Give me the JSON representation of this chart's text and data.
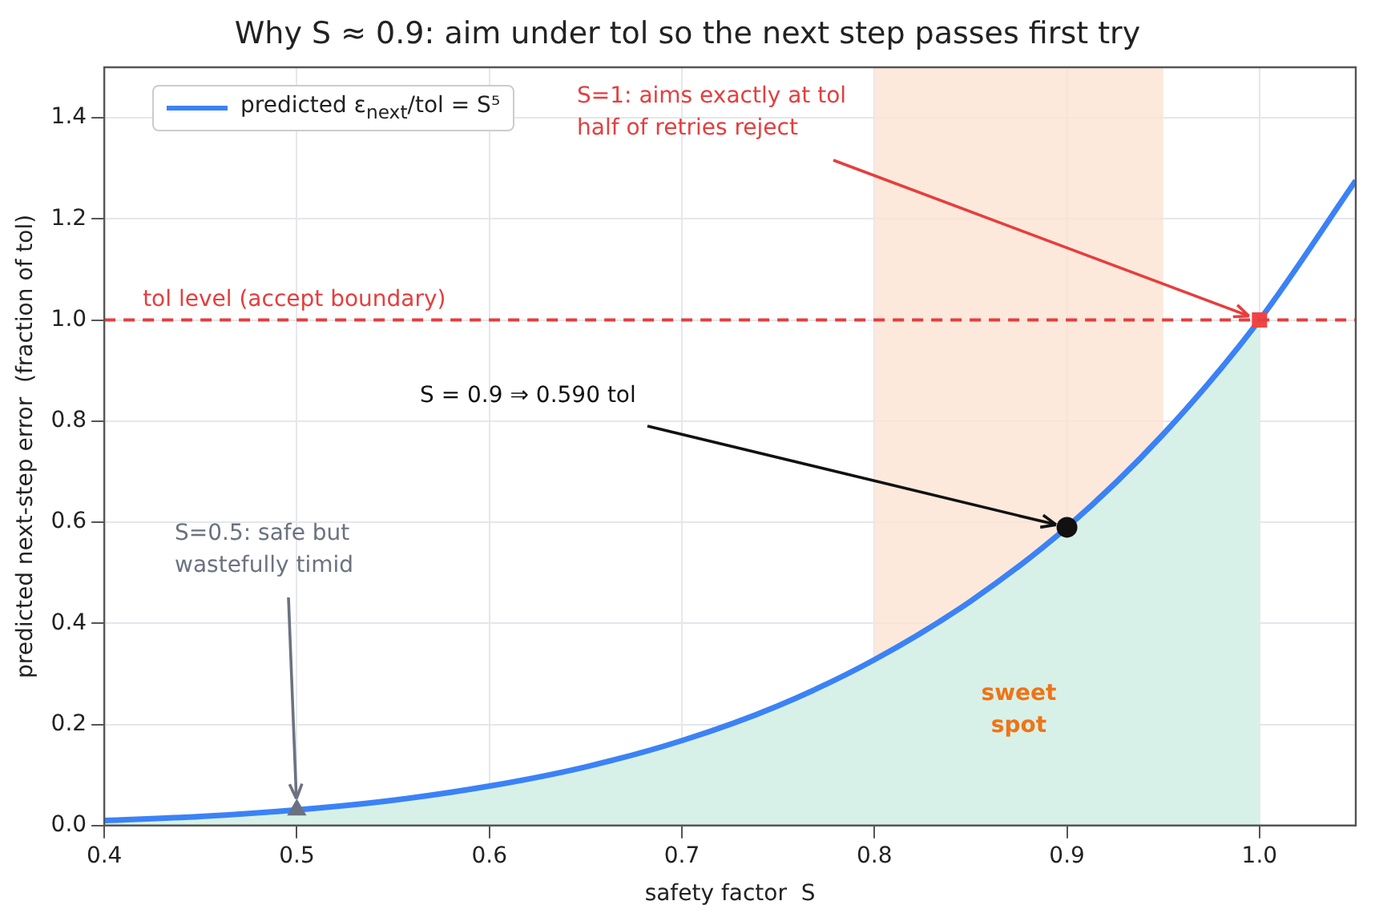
{
  "chart_data": {
    "type": "line",
    "title": "Why S ≈ 0.9: aim under tol so the next step passes first try",
    "xlabel": "safety factor  S",
    "ylabel": "predicted next-step error  (fraction of tol)",
    "xlim": [
      0.4,
      1.05
    ],
    "ylim": [
      0,
      1.5
    ],
    "xticks": [
      0.4,
      0.5,
      0.6,
      0.7,
      0.8,
      0.9,
      {
        "value": 1,
        "label": "1.0"
      }
    ],
    "yticks": [
      {
        "value": 0,
        "label": "0.0"
      },
      0.2,
      0.4,
      0.6,
      0.8,
      {
        "value": 1,
        "label": "1.0"
      },
      1.2,
      1.4
    ],
    "grid": true,
    "legend": "top left",
    "series": [
      {
        "name": "predicted ε$_{next}$/tol  = S⁵",
        "type": "line",
        "color": "#3b82f6",
        "marker": "none",
        "x": [
          0.4,
          0.45,
          0.5,
          0.55,
          0.6,
          0.65,
          0.7,
          0.75,
          0.8,
          0.85,
          0.9,
          0.95,
          1.0,
          1.05
        ],
        "values": [
          0.01,
          0.018,
          0.031,
          0.05,
          0.078,
          0.116,
          0.168,
          0.237,
          0.328,
          0.444,
          0.59,
          0.774,
          1.0,
          1.276
        ]
      },
      {
        "type": "area",
        "color": "#d8f1e8",
        "x": [
          0.4,
          0.45,
          0.5,
          0.55,
          0.6,
          0.65,
          0.7,
          0.75,
          0.8,
          0.85,
          0.9,
          0.95,
          1.0
        ],
        "values": [
          0.01,
          0.018,
          0.031,
          0.05,
          0.078,
          0.116,
          0.168,
          0.237,
          0.328,
          0.444,
          0.59,
          0.774,
          1.0
        ]
      },
      {
        "type": "scatter",
        "color": "#6b7280",
        "marker": "triangle",
        "x": [
          0.5
        ],
        "values": [
          0.031
        ]
      },
      {
        "type": "scatter",
        "color": "#111111",
        "marker": "circle",
        "x": [
          0.9
        ],
        "values": [
          0.59
        ]
      },
      {
        "type": "scatter",
        "color": "#ef4444",
        "marker": "square",
        "x": [
          1.0
        ],
        "values": [
          1.0
        ]
      }
    ],
    "ref_lines": [
      {
        "axis": "y",
        "value": 1,
        "label": "tol level (accept boundary)",
        "color": "#e53e3e",
        "line_style": "dashed"
      }
    ],
    "bands": [
      {
        "axis": "x",
        "from": 0.8,
        "to": 0.95,
        "label": "sweet spot",
        "color": "#fde4d2"
      }
    ],
    "annotations": [
      {
        "text": "S=1: aims exactly at tol\nhalf of retries reject",
        "x": 1.0,
        "y": 1.0
      },
      {
        "text": "S = 0.9 ⇒ 0.590 tol",
        "x": 0.9,
        "y": 0.59
      },
      {
        "text": "S=0.5: safe but\nwastefully timid",
        "x": 0.5,
        "y": 0.031
      }
    ]
  }
}
